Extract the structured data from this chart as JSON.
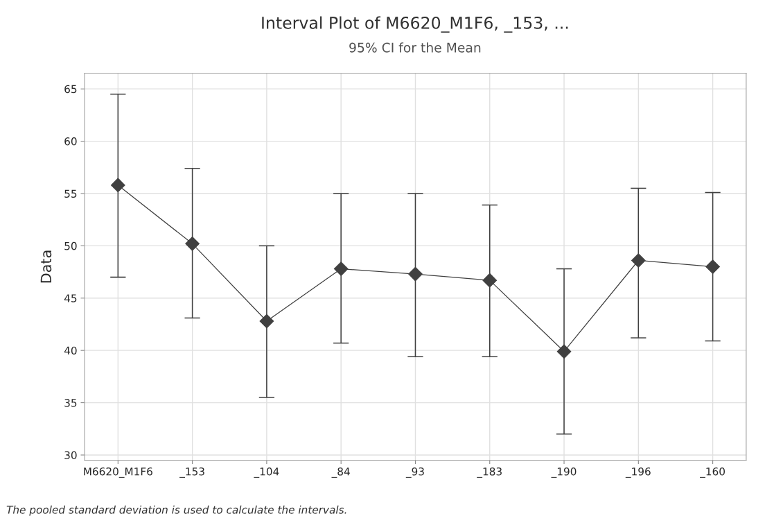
{
  "chart_data": {
    "type": "line",
    "title": "Interval Plot of M6620_M1F6, _153, ...",
    "subtitle": "95% CI for the Mean",
    "ylabel": "Data",
    "categories": [
      "M6620_M1F6",
      "_153",
      "_104",
      "_84",
      "_93",
      "_183",
      "_190",
      "_196",
      "_160"
    ],
    "series": [
      {
        "color": "#404040",
        "values": [
          55.8,
          50.2,
          42.8,
          47.8,
          47.3,
          46.7,
          39.9,
          48.6,
          48.0
        ],
        "errors": [
          [
            47.0,
            64.5
          ],
          [
            43.1,
            57.4
          ],
          [
            35.5,
            50.0
          ],
          [
            40.7,
            55.0
          ],
          [
            39.4,
            55.0
          ],
          [
            39.4,
            53.9
          ],
          [
            32.0,
            47.8
          ],
          [
            41.2,
            55.5
          ],
          [
            40.9,
            55.1
          ]
        ]
      }
    ],
    "ylim": [
      29.5,
      66.5
    ],
    "yticks": [
      30,
      35,
      40,
      45,
      50,
      55,
      60,
      65
    ],
    "grid": true,
    "marker": "diamond",
    "line_style": "solid",
    "annotations": [
      "The pooled standard deviation is used to calculate the intervals."
    ]
  }
}
